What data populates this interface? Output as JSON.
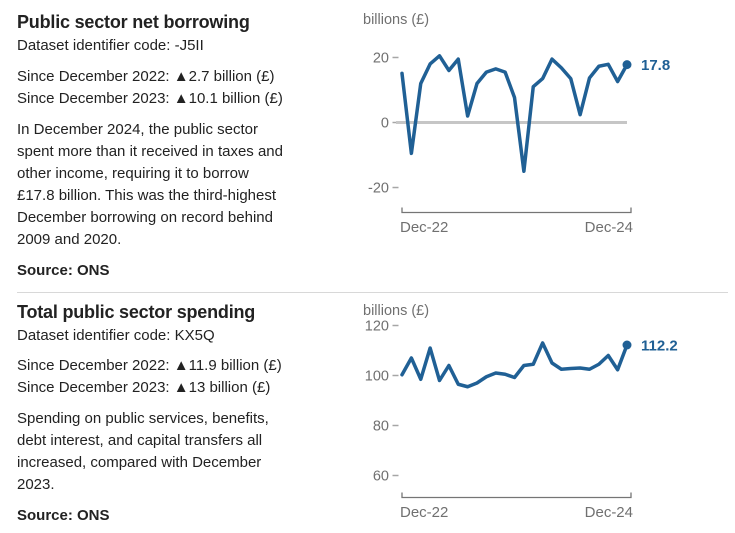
{
  "sections": [
    {
      "title": "Public sector net borrowing",
      "dataset_code_line": "Dataset identifier code: -J5II",
      "stats": [
        "Since December 2022: ▲2.7 billion (£)",
        "Since December 2023: ▲10.1 billion (£)"
      ],
      "description_lines": [
        "In December 2024, the public sector",
        "spent more than it received in taxes and",
        "other income, requiring it to borrow",
        "£17.8 billion. This was the third-highest",
        "December borrowing on record behind",
        "2009 and 2020."
      ],
      "source": "Source: ONS"
    },
    {
      "title": "Total public sector spending",
      "dataset_code_line": "Dataset identifier code: KX5Q",
      "stats": [
        "Since December 2022: ▲11.9 billion (£)",
        "Since December 2023: ▲13 billion (£)"
      ],
      "description_lines": [
        "Spending on public services, benefits,",
        "debt interest, and capital transfers all",
        "increased, compared with December",
        "2023."
      ],
      "source": "Source: ONS"
    }
  ],
  "colors": {
    "line_blue": "#206095",
    "text": "#222222",
    "muted_gray": "#707070",
    "zero_line_gray": "#c6c6c6",
    "axis_gray": "#757575",
    "divider_gray": "#d8d8d8"
  },
  "chart_data": [
    {
      "type": "line",
      "unit_label": "billions (£)",
      "x_start": "Dec-22",
      "x_end": "Dec-24",
      "frequency": "monthly",
      "xtick_labels": [
        "Dec-22",
        "Dec-24"
      ],
      "yticks": [
        20,
        0,
        -20
      ],
      "ylim": [
        -22.3,
        22.3
      ],
      "zero_line": true,
      "values": [
        15.1,
        -9.5,
        12,
        18,
        20.5,
        16,
        19.5,
        2,
        12,
        15.5,
        16.5,
        15.5,
        7.7,
        -15,
        11,
        13.5,
        19.5,
        16.8,
        13.5,
        2.4,
        13.7,
        17.3,
        17.9,
        12.6,
        17.8
      ],
      "latest_value_label": "17.8",
      "line_color": "#206095"
    },
    {
      "type": "line",
      "unit_label": "billions (£)",
      "x_start": "Dec-22",
      "x_end": "Dec-24",
      "frequency": "monthly",
      "xtick_labels": [
        "Dec-22",
        "Dec-24"
      ],
      "yticks": [
        120,
        100,
        80,
        60
      ],
      "ylim": [
        58,
        122
      ],
      "zero_line": false,
      "values": [
        100.3,
        107,
        98.5,
        111,
        98,
        104,
        96.5,
        95.5,
        97,
        99.5,
        101,
        100.5,
        99.2,
        104,
        104.5,
        113,
        105,
        102.5,
        102.8,
        103,
        102.5,
        104.5,
        108,
        102.3,
        112.2
      ],
      "latest_value_label": "112.2",
      "line_color": "#206095"
    }
  ]
}
